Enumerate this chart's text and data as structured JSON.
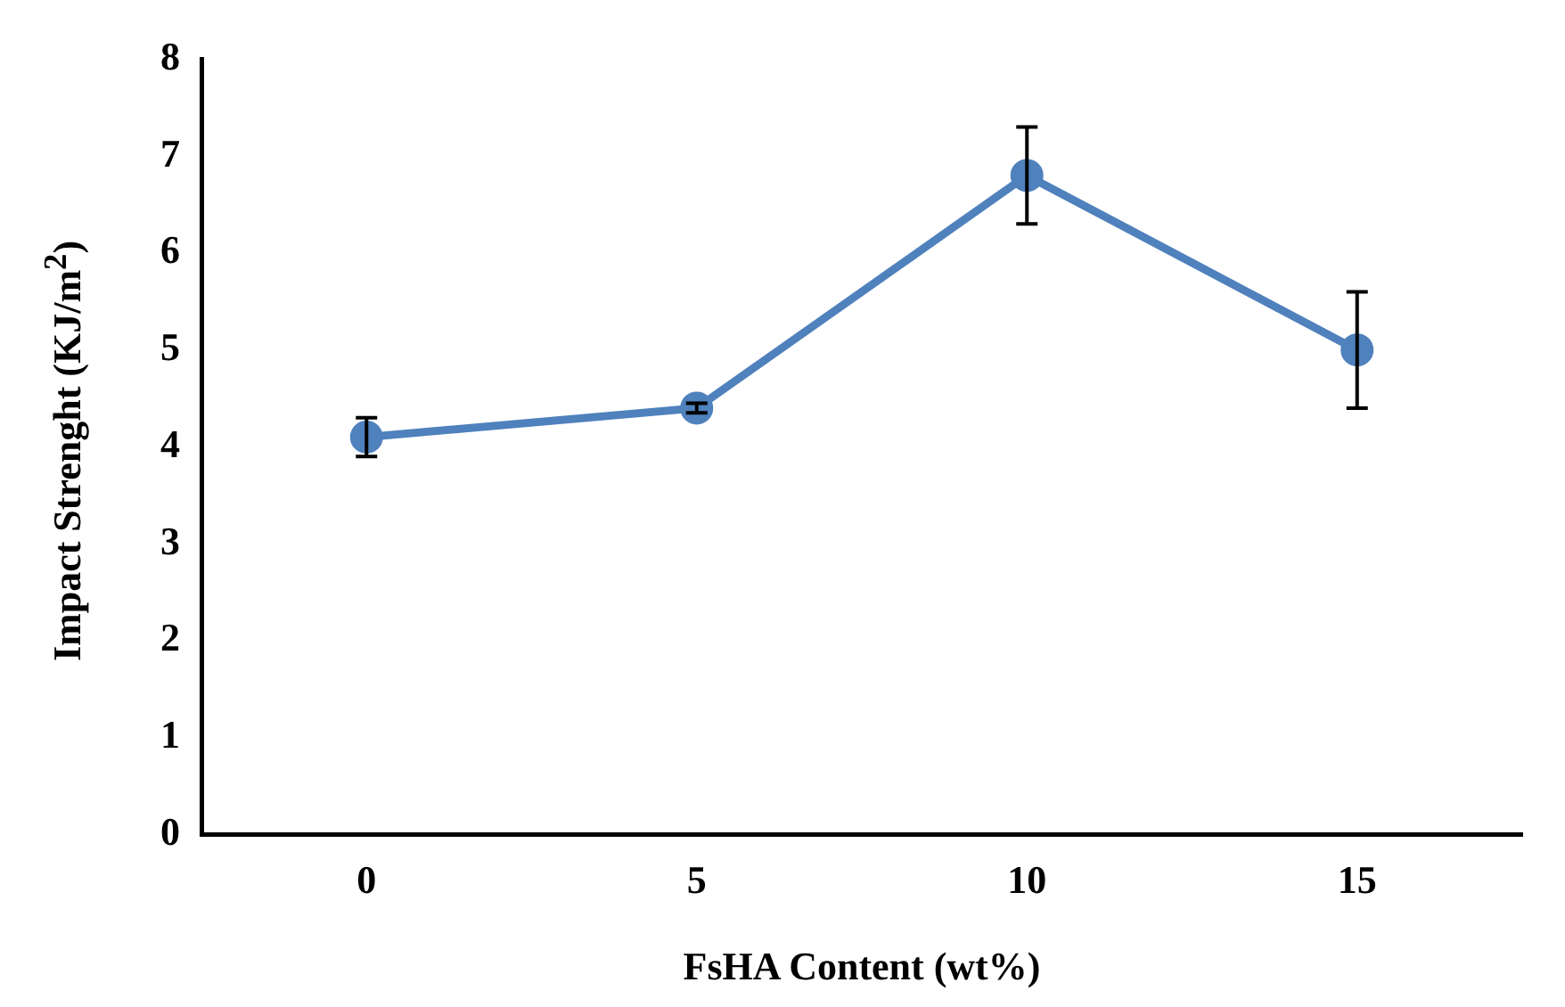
{
  "chart_data": {
    "type": "line",
    "xlabel": "FsHA Content (wt%)",
    "ylabel": "Impact Strenght (KJ/m$^{2}$)",
    "categories": [
      "0",
      "5",
      "10",
      "15"
    ],
    "series": [
      {
        "color": "#4f81bd",
        "values": [
          4.1,
          4.4,
          6.8,
          5.0
        ],
        "errors": [
          0.2,
          0.05,
          0.5,
          0.6
        ]
      }
    ],
    "ylim": [
      0,
      8
    ],
    "yticks": [
      0,
      1,
      2,
      3,
      4,
      5,
      6,
      7,
      8
    ],
    "grid": false,
    "legend": false,
    "marker": "circle",
    "line_style": "solid"
  }
}
